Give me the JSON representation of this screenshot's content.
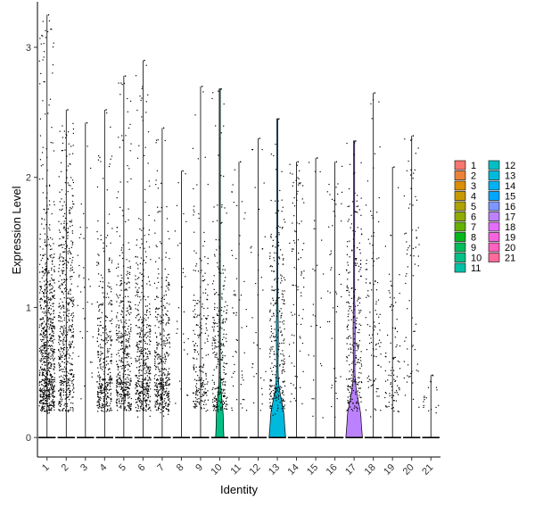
{
  "chart_data": {
    "type": "violin",
    "xlabel": "Identity",
    "ylabel": "Expression Level",
    "ylim": [
      -0.15,
      3.35
    ],
    "yticks": [
      0,
      1,
      2,
      3
    ],
    "categories": [
      "1",
      "2",
      "3",
      "4",
      "5",
      "6",
      "7",
      "8",
      "9",
      "10",
      "11",
      "12",
      "13",
      "14",
      "15",
      "16",
      "17",
      "18",
      "19",
      "20",
      "21"
    ],
    "colors": [
      "#F8766D",
      "#EC8239",
      "#DB8E00",
      "#C79800",
      "#AEA200",
      "#8FAA00",
      "#64B200",
      "#00B81B",
      "#00BD5C",
      "#00C085",
      "#00C1A7",
      "#00BFC4",
      "#00BADE",
      "#00B2F3",
      "#00A6FF",
      "#7F96FF",
      "#BC81FF",
      "#E26EF7",
      "#F863DF",
      "#FF62BF",
      "#FF6A9A"
    ],
    "series": [
      {
        "name": "1",
        "max": 3.25,
        "pct_expressing": 0.88,
        "center": 0.65,
        "violin_width": 0
      },
      {
        "name": "2",
        "max": 2.52,
        "pct_expressing": 0.62,
        "center": 0.9,
        "violin_width": 0
      },
      {
        "name": "3",
        "max": 2.42,
        "pct_expressing": 0.04,
        "center": 1.0,
        "violin_width": 0
      },
      {
        "name": "4",
        "max": 2.52,
        "pct_expressing": 0.42,
        "center": 0.5,
        "violin_width": 0
      },
      {
        "name": "5",
        "max": 2.78,
        "pct_expressing": 0.48,
        "center": 0.5,
        "violin_width": 0
      },
      {
        "name": "6",
        "max": 2.9,
        "pct_expressing": 0.5,
        "center": 0.55,
        "violin_width": 0
      },
      {
        "name": "7",
        "max": 2.38,
        "pct_expressing": 0.45,
        "center": 0.5,
        "violin_width": 0
      },
      {
        "name": "8",
        "max": 2.05,
        "pct_expressing": 0.03,
        "center": 0.9,
        "violin_width": 0
      },
      {
        "name": "9",
        "max": 2.7,
        "pct_expressing": 0.25,
        "center": 0.6,
        "violin_width": 0
      },
      {
        "name": "10",
        "max": 2.68,
        "pct_expressing": 0.3,
        "center": 0.6,
        "violin_width": 0.45
      },
      {
        "name": "11",
        "max": 2.12,
        "pct_expressing": 0.06,
        "center": 1.0,
        "violin_width": 0
      },
      {
        "name": "12",
        "max": 2.3,
        "pct_expressing": 0.04,
        "center": 1.1,
        "violin_width": 0
      },
      {
        "name": "13",
        "max": 2.45,
        "pct_expressing": 0.32,
        "center": 0.8,
        "violin_width": 0.9
      },
      {
        "name": "14",
        "max": 2.12,
        "pct_expressing": 0.1,
        "center": 1.3,
        "violin_width": 0
      },
      {
        "name": "15",
        "max": 2.15,
        "pct_expressing": 0.03,
        "center": 0.9,
        "violin_width": 0
      },
      {
        "name": "16",
        "max": 2.12,
        "pct_expressing": 0.05,
        "center": 1.2,
        "violin_width": 0
      },
      {
        "name": "17",
        "max": 2.28,
        "pct_expressing": 0.3,
        "center": 0.8,
        "violin_width": 0.9
      },
      {
        "name": "18",
        "max": 2.65,
        "pct_expressing": 0.12,
        "center": 0.9,
        "violin_width": 0
      },
      {
        "name": "19",
        "max": 2.08,
        "pct_expressing": 0.1,
        "center": 0.5,
        "violin_width": 0
      },
      {
        "name": "20",
        "max": 2.32,
        "pct_expressing": 0.08,
        "center": 1.1,
        "violin_width": 0
      },
      {
        "name": "21",
        "max": 0.48,
        "pct_expressing": 0.02,
        "center": 0.45,
        "violin_width": 0
      }
    ],
    "legend": {
      "position": "right",
      "columns": 2
    }
  }
}
